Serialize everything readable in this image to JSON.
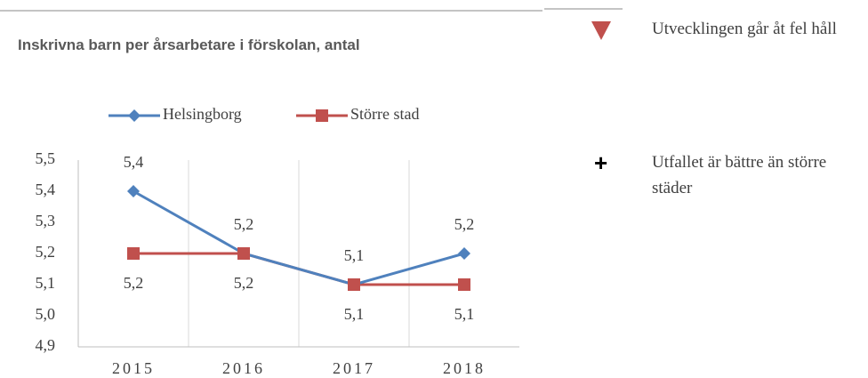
{
  "chart_data": {
    "type": "line",
    "title": "Inskrivna barn per årsarbetare i förskolan, antal",
    "categories": [
      "2015",
      "2016",
      "2017",
      "2018"
    ],
    "series": [
      {
        "name": "Helsingborg",
        "color": "#4f81bd",
        "marker": "diamond",
        "values": [
          5.4,
          5.2,
          5.1,
          5.2
        ],
        "value_labels": [
          "5,4",
          "5,2",
          "5,1",
          "5,2"
        ]
      },
      {
        "name": "Större stad",
        "color": "#c0504d",
        "marker": "square",
        "values": [
          5.2,
          5.2,
          5.1,
          5.1
        ],
        "value_labels": [
          "5,2",
          "5,2",
          "5,1",
          "5,1"
        ]
      }
    ],
    "ylim": [
      4.9,
      5.5
    ],
    "yticks": [
      {
        "value": 4.9,
        "label": "4,9"
      },
      {
        "value": 5.0,
        "label": "5,0"
      },
      {
        "value": 5.1,
        "label": "5,1"
      },
      {
        "value": 5.2,
        "label": "5,2"
      },
      {
        "value": 5.3,
        "label": "5,3"
      },
      {
        "value": 5.4,
        "label": "5,4"
      },
      {
        "value": 5.5,
        "label": "5,5"
      }
    ],
    "grid": "vertical",
    "legend": "top"
  },
  "notes": [
    {
      "text": "Utvecklingen går åt fel håll"
    },
    {
      "symbol": "+",
      "text": "Utfallet är bättre än större städer"
    }
  ]
}
